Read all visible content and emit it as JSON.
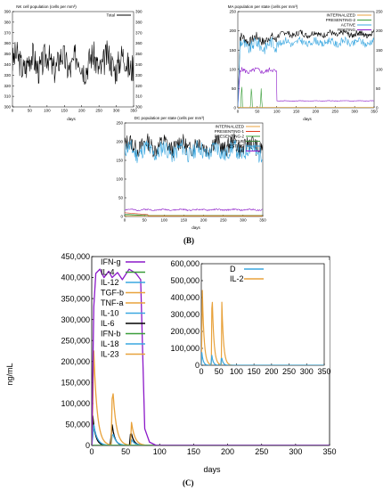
{
  "panel_labels": {
    "b": "(B)",
    "c": "(C)"
  },
  "chart_data": [
    {
      "id": "nk",
      "type": "line",
      "title": "NK cell population (cells per mm³)",
      "xlabel": "days",
      "ylabel": "",
      "xlim": [
        0,
        350
      ],
      "ylim": [
        300,
        390
      ],
      "x_ticks": [
        0,
        50,
        100,
        150,
        200,
        250,
        300,
        350
      ],
      "y_ticks": [
        300,
        310,
        320,
        330,
        340,
        350,
        360,
        370,
        380,
        390
      ],
      "right_axis": true,
      "legend": "top-right",
      "grid": false,
      "series": [
        {
          "name": "Total",
          "color": "#000000",
          "style": "noise",
          "base": 342,
          "amp": 28,
          "seed": 3
        }
      ]
    },
    {
      "id": "ma",
      "type": "line",
      "title": "MA population per state (cells per mm³)",
      "xlabel": "days",
      "ylabel": "",
      "xlim": [
        0,
        350
      ],
      "ylim": [
        0,
        250
      ],
      "x_ticks": [
        0,
        50,
        100,
        150,
        200,
        250,
        300,
        350
      ],
      "y_ticks": [
        0,
        50,
        100,
        150,
        200,
        250
      ],
      "right_axis": true,
      "legend": "top-right",
      "grid": false,
      "series": [
        {
          "name": "INTERNALIZED",
          "color": "#e8a23c",
          "style": "flat",
          "base": 1
        },
        {
          "name": "PRESENTING-2",
          "color": "#3a9e3a",
          "style": "spikes",
          "spikes": [
            [
              10,
              60
            ],
            [
              35,
              55
            ],
            [
              60,
              50
            ]
          ]
        },
        {
          "name": "ACTIVE",
          "color": "#3aa7e0",
          "style": "step",
          "base": 162,
          "after": 170,
          "switch": 100,
          "amp": 30,
          "seed": 9
        },
        {
          "name": "RESTING",
          "color": "#8b18c8",
          "style": "step",
          "base": 96,
          "after": 18,
          "switch": 100,
          "amp": 12,
          "seed": 5
        },
        {
          "name": "Total",
          "color": "#000000",
          "style": "step",
          "base": 178,
          "after": 192,
          "switch": 100,
          "amp": 24,
          "seed": 7
        }
      ]
    },
    {
      "id": "dc",
      "type": "line",
      "title": "DC population per state (cells per mm³)",
      "xlabel": "days",
      "ylabel": "",
      "xlim": [
        0,
        350
      ],
      "ylim": [
        0,
        250
      ],
      "x_ticks": [
        0,
        50,
        100,
        150,
        200,
        250,
        300,
        350
      ],
      "y_ticks": [
        0,
        50,
        100,
        150,
        200,
        250
      ],
      "right_axis": false,
      "legend": "top-right",
      "grid": false,
      "series": [
        {
          "name": "INTERNALIZED",
          "color": "#e8a23c",
          "style": "flat",
          "base": 1
        },
        {
          "name": "PRESENTING-1",
          "color": "#e03c1e",
          "style": "decay",
          "base": 10,
          "after": 2
        },
        {
          "name": "PRESENTING-2",
          "color": "#3a9e3a",
          "style": "flat",
          "base": 3
        },
        {
          "name": "ACTIVE",
          "color": "#3a8a3a",
          "style": "decay",
          "base": 6,
          "after": 1
        },
        {
          "name": "RESTING",
          "color": "#3aa7e0",
          "style": "noise",
          "base": 175,
          "amp": 45,
          "seed": 11
        },
        {
          "name": "Total",
          "color": "#8b18c8",
          "style": "noise",
          "base": 18,
          "amp": 4,
          "seed": 2
        },
        {
          "name": "",
          "color": "#000000",
          "style": "noise",
          "base": 190,
          "amp": 45,
          "seed": 13
        }
      ]
    },
    {
      "id": "cyto",
      "type": "line",
      "title": "",
      "xlabel": "days",
      "ylabel": "ng/mL",
      "xlim": [
        0,
        350
      ],
      "ylim": [
        0,
        450000
      ],
      "x_ticks": [
        0,
        50,
        100,
        150,
        200,
        250,
        300,
        350
      ],
      "y_ticks": [
        0,
        50000,
        100000,
        150000,
        200000,
        250000,
        300000,
        350000,
        400000,
        450000
      ],
      "y_tick_labels": [
        "0",
        "50,000",
        "100,000",
        "150,000",
        "200,000",
        "250,000",
        "300,000",
        "350,000",
        "400,000",
        "450,000"
      ],
      "legend": "top-left",
      "grid": false,
      "series": [
        {
          "name": "IFN-g",
          "color": "#8b18c8",
          "style": "plateau",
          "points": [
            [
              0,
              0
            ],
            [
              3,
              330000
            ],
            [
              6,
              410000
            ],
            [
              12,
              420000
            ],
            [
              18,
              400000
            ],
            [
              25,
              415000
            ],
            [
              30,
              400000
            ],
            [
              38,
              412000
            ],
            [
              45,
              395000
            ],
            [
              55,
              420000
            ],
            [
              65,
              410000
            ],
            [
              72,
              395000
            ],
            [
              78,
              40000
            ],
            [
              85,
              8000
            ],
            [
              95,
              0
            ],
            [
              350,
              0
            ]
          ]
        },
        {
          "name": "IL-4",
          "color": "#3a9e3a",
          "style": "flat",
          "base": 0
        },
        {
          "name": "IL-12",
          "color": "#3aa7e0",
          "style": "flat",
          "base": 0
        },
        {
          "name": "TGF-b",
          "color": "#e8a23c",
          "style": "pulses",
          "pulses": [
            [
              2,
              275000,
              5
            ],
            [
              30,
              165000,
              5
            ],
            [
              58,
              60000,
              5
            ]
          ]
        },
        {
          "name": "TNF-a",
          "color": "#e8a23c",
          "style": "flat",
          "base": 0
        },
        {
          "name": "IL-10",
          "color": "#3aa7e0",
          "style": "pulses",
          "pulses": [
            [
              2,
              60000,
              5
            ],
            [
              30,
              35000,
              5
            ],
            [
              58,
              15000,
              5
            ]
          ]
        },
        {
          "name": "IL-6",
          "color": "#000000",
          "style": "pulses",
          "pulses": [
            [
              1,
              80000,
              4
            ],
            [
              29,
              63000,
              4
            ],
            [
              57,
              40000,
              4
            ]
          ]
        },
        {
          "name": "IFN-b",
          "color": "#3a9e3a",
          "style": "flat",
          "base": 0
        },
        {
          "name": "IL-18",
          "color": "#3aa7e0",
          "style": "flat",
          "base": 0
        },
        {
          "name": "IL-23",
          "color": "#e8a23c",
          "style": "flat",
          "base": 0
        }
      ]
    },
    {
      "id": "inset",
      "type": "line",
      "title": "",
      "xlabel": "",
      "ylabel": "",
      "xlim": [
        0,
        350
      ],
      "ylim": [
        0,
        600000
      ],
      "x_ticks": [
        0,
        50,
        100,
        150,
        200,
        250,
        300,
        350
      ],
      "y_ticks": [
        0,
        100000,
        200000,
        300000,
        400000,
        500000,
        600000
      ],
      "y_tick_labels": [
        "0",
        "100,000",
        "200,000",
        "300,000",
        "400,000",
        "500,000",
        "600,000"
      ],
      "legend": "top-left",
      "grid": false,
      "series": [
        {
          "name": "D",
          "color": "#3aa7e0",
          "style": "pulses",
          "pulses": [
            [
              1,
              85000,
              4
            ],
            [
              29,
              75000,
              4
            ],
            [
              57,
              60000,
              4
            ]
          ]
        },
        {
          "name": "IL-2",
          "color": "#e8a23c",
          "style": "pulses",
          "pulses": [
            [
              2,
              540000,
              5
            ],
            [
              30,
              500000,
              5
            ],
            [
              58,
              410000,
              5
            ]
          ]
        }
      ]
    }
  ]
}
